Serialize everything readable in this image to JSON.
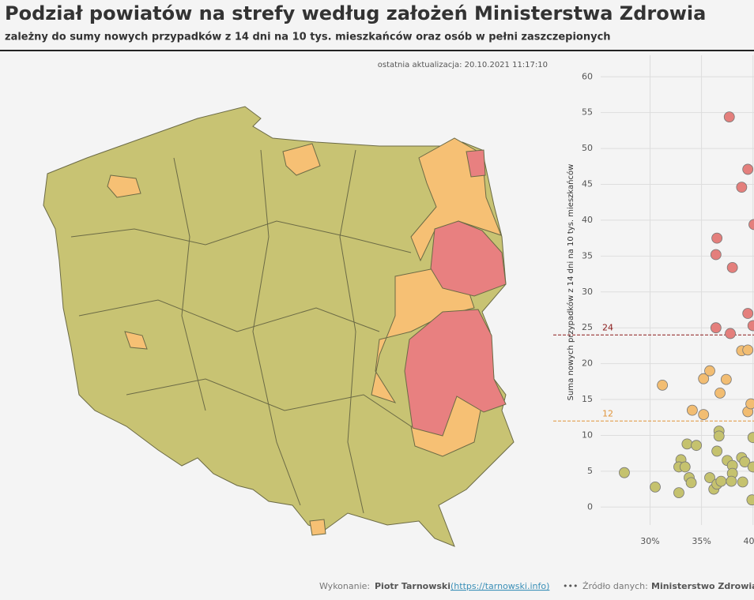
{
  "header": {
    "title": "Podział powiatów na strefy według założeń Ministerstwa Zdrowia",
    "subtitle": "zależny do sumy nowych przypadków z 14 dni na 10 tys. mieszkańców oraz osób w pełni zaszczepionych",
    "last_update": "ostatnia aktualizacja: 20.10.2021 11:17:10"
  },
  "chart_data": {
    "type": "scatter",
    "y_label": "Suma nowych przypadków z 14 dni na 10 tys. mieszkańców",
    "xlim": [
      25.2,
      40.1
    ],
    "ylim": [
      -2.5,
      63
    ],
    "xticks": [
      {
        "value": 30,
        "label": "30%"
      },
      {
        "value": 35,
        "label": "35%"
      },
      {
        "value": 40,
        "label": "40%"
      }
    ],
    "yticks": [
      0,
      5,
      10,
      15,
      20,
      25,
      30,
      35,
      40,
      45,
      50,
      55,
      60
    ],
    "grid": true,
    "reference_lines": [
      {
        "value": 24,
        "color": "#8b1a1a"
      },
      {
        "value": 12,
        "color": "#e0953a"
      }
    ],
    "series": [
      {
        "color": "#c5c26e",
        "x": [
          27.5,
          30.5,
          32.8,
          33.0,
          32.8,
          33.4,
          33.8,
          34.0,
          33.6,
          34.5,
          35.8,
          36.2,
          36.5,
          36.7,
          36.7,
          36.5,
          36.9,
          37.5,
          38.0,
          38.0,
          37.9,
          38.9,
          39.0,
          39.2,
          40.0,
          39.9,
          40.0
        ],
        "values": [
          4.8,
          2.8,
          2.0,
          6.6,
          5.6,
          5.6,
          4.1,
          3.4,
          8.8,
          8.6,
          4.1,
          2.5,
          3.2,
          10.6,
          9.9,
          7.8,
          3.6,
          6.5,
          5.8,
          4.7,
          3.6,
          6.9,
          3.5,
          6.3,
          9.7,
          1.0,
          5.6
        ]
      },
      {
        "color": "#f2bd72",
        "x": [
          31.2,
          34.1,
          35.2,
          35.2,
          35.8,
          36.8,
          37.4,
          38.9,
          39.5,
          39.5,
          39.8
        ],
        "values": [
          17,
          13.5,
          12.9,
          17.9,
          19.0,
          15.9,
          17.8,
          21.8,
          21.9,
          13.3,
          14.4
        ]
      },
      {
        "color": "#e47f7c",
        "x": [
          37.7,
          36.5,
          36.4,
          38.0,
          38.9,
          39.5,
          40.1,
          39.5,
          36.4,
          37.8,
          40.0
        ],
        "values": [
          54.4,
          37.5,
          35.2,
          33.4,
          44.6,
          47.1,
          39.4,
          27.0,
          25.0,
          24.2,
          25.3
        ]
      }
    ]
  },
  "footer": {
    "made_by_label": "Wykonanie:",
    "author": "Piotr Tarnowski",
    "url": "(https://tarnowski.info)",
    "separator": "•••",
    "source_label": "Źródło danych:",
    "source": "Ministerstwo Zdrowia"
  }
}
